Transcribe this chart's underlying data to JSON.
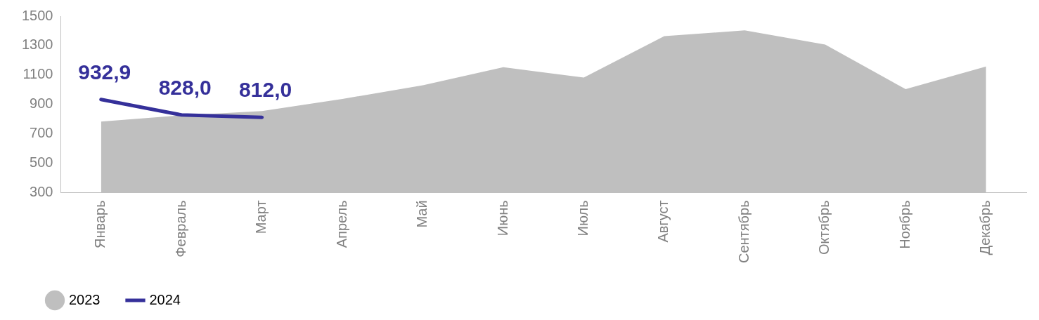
{
  "chart_data": {
    "type": "area",
    "categories": [
      "Январь",
      "Февраль",
      "Март",
      "Апрель",
      "Май",
      "Июнь",
      "Июль",
      "Август",
      "Сентябрь",
      "Октябрь",
      "Ноябрь",
      "Декабрь"
    ],
    "series": [
      {
        "name": "2023",
        "color": "#bfbfbf",
        "values": [
          783,
          825,
          854,
          937,
          1030,
          1153,
          1082,
          1364,
          1403,
          1307,
          1003,
          1157
        ]
      },
      {
        "name": "2024",
        "type": "line",
        "color": "#35309a",
        "values": [
          932.9,
          828,
          812,
          null,
          null,
          null,
          null,
          null,
          null,
          null,
          null,
          null
        ],
        "value_labels": [
          "932,9",
          "828,0",
          "812,0",
          null,
          null,
          null,
          null,
          null,
          null,
          null,
          null,
          null
        ]
      }
    ],
    "ylim": [
      300,
      1500
    ],
    "yticks": [
      300,
      500,
      700,
      900,
      1100,
      1300,
      1500
    ],
    "grid": false,
    "legend": "bottom left",
    "marker": "none"
  }
}
